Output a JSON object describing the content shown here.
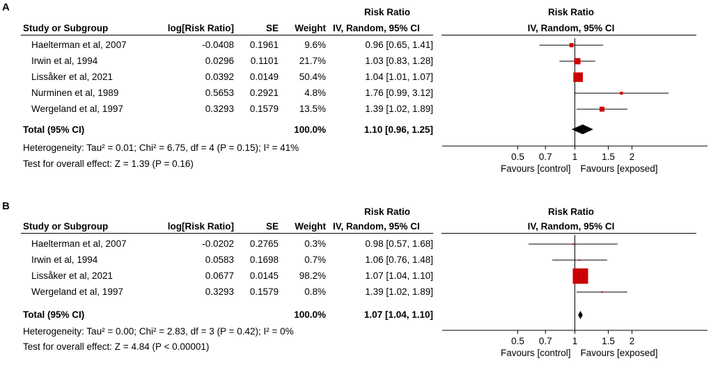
{
  "panels": [
    {
      "letter": "A",
      "rr_group_header": "Risk Ratio",
      "plot_title": "Risk Ratio",
      "headers": {
        "study": "Study or Subgroup",
        "logrr": "log[Risk Ratio]",
        "se": "SE",
        "weight": "Weight",
        "ci": "IV, Random, 95% CI",
        "plot_ci": "IV, Random, 95% CI"
      },
      "rows": [
        {
          "study": "Haelterman et al, 2007",
          "logrr": "-0.0408",
          "se": "0.1961",
          "weight": "9.6%",
          "ci": "0.96 [0.65, 1.41]"
        },
        {
          "study": "Irwin et al, 1994",
          "logrr": "0.0296",
          "se": "0.1101",
          "weight": "21.7%",
          "ci": "1.03 [0.83, 1.28]"
        },
        {
          "study": "Lissåker et al, 2021",
          "logrr": "0.0392",
          "se": "0.0149",
          "weight": "50.4%",
          "ci": "1.04 [1.01, 1.07]"
        },
        {
          "study": "Nurminen et al, 1989",
          "logrr": "0.5653",
          "se": "0.2921",
          "weight": "4.8%",
          "ci": "1.76 [0.99, 3.12]"
        },
        {
          "study": "Wergeland et al, 1997",
          "logrr": "0.3293",
          "se": "0.1579",
          "weight": "13.5%",
          "ci": "1.39 [1.02, 1.89]"
        }
      ],
      "total": {
        "label": "Total (95% CI)",
        "weight": "100.0%",
        "ci": "1.10 [0.96, 1.25]"
      },
      "heterogeneity": "Heterogeneity: Tau² = 0.01; Chi² = 6.75, df = 4 (P = 0.15); I² = 41%",
      "overall_effect": "Test for overall effect: Z = 1.39 (P = 0.16)",
      "axis": {
        "ticks": [
          "0.5",
          "0.7",
          "1",
          "1.5",
          "2"
        ],
        "left_label": "Favours [control]",
        "right_label": "Favours [exposed]"
      }
    },
    {
      "letter": "B",
      "rr_group_header": "Risk Ratio",
      "plot_title": "Risk Ratio",
      "headers": {
        "study": "Study or Subgroup",
        "logrr": "log[Risk Ratio]",
        "se": "SE",
        "weight": "Weight",
        "ci": "IV, Random, 95% CI",
        "plot_ci": "IV, Random, 95% CI"
      },
      "rows": [
        {
          "study": "Haelterman et al, 2007",
          "logrr": "-0.0202",
          "se": "0.2765",
          "weight": "0.3%",
          "ci": "0.98 [0.57, 1.68]"
        },
        {
          "study": "Irwin et al, 1994",
          "logrr": "0.0583",
          "se": "0.1698",
          "weight": "0.7%",
          "ci": "1.06 [0.76, 1.48]"
        },
        {
          "study": "Lissåker et al, 2021",
          "logrr": "0.0677",
          "se": "0.0145",
          "weight": "98.2%",
          "ci": "1.07 [1.04, 1.10]"
        },
        {
          "study": "Wergeland et al, 1997",
          "logrr": "0.3293",
          "se": "0.1579",
          "weight": "0.8%",
          "ci": "1.39 [1.02, 1.89]"
        }
      ],
      "total": {
        "label": "Total (95% CI)",
        "weight": "100.0%",
        "ci": "1.07 [1.04, 1.10]"
      },
      "heterogeneity": "Heterogeneity: Tau² = 0.00; Chi² = 2.83, df = 3 (P = 0.42); I² = 0%",
      "overall_effect": "Test for overall effect: Z = 4.84 (P < 0.00001)",
      "axis": {
        "ticks": [
          "0.5",
          "0.7",
          "1",
          "1.5",
          "2"
        ],
        "left_label": "Favours [control]",
        "right_label": "Favours [exposed]"
      }
    }
  ],
  "chart_data": [
    {
      "type": "forest",
      "title": "Risk Ratio",
      "scale": "log",
      "xlim": [
        0.2,
        5
      ],
      "ticks": [
        0.5,
        0.7,
        1,
        1.5,
        2
      ],
      "null_value": 1,
      "studies": [
        {
          "name": "Haelterman et al, 2007",
          "rr": 0.96,
          "lo": 0.65,
          "hi": 1.41,
          "weight": 9.6
        },
        {
          "name": "Irwin et al, 1994",
          "rr": 1.03,
          "lo": 0.83,
          "hi": 1.28,
          "weight": 21.7
        },
        {
          "name": "Lissåker et al, 2021",
          "rr": 1.04,
          "lo": 1.01,
          "hi": 1.07,
          "weight": 50.4
        },
        {
          "name": "Nurminen et al, 1989",
          "rr": 1.76,
          "lo": 0.99,
          "hi": 3.12,
          "weight": 4.8
        },
        {
          "name": "Wergeland et al, 1997",
          "rr": 1.39,
          "lo": 1.02,
          "hi": 1.89,
          "weight": 13.5
        }
      ],
      "pooled": {
        "rr": 1.1,
        "lo": 0.96,
        "hi": 1.25
      },
      "xlabel_left": "Favours [control]",
      "xlabel_right": "Favours [exposed]",
      "marker_color": "#cc0000"
    },
    {
      "type": "forest",
      "title": "Risk Ratio",
      "scale": "log",
      "xlim": [
        0.2,
        5
      ],
      "ticks": [
        0.5,
        0.7,
        1,
        1.5,
        2
      ],
      "null_value": 1,
      "studies": [
        {
          "name": "Haelterman et al, 2007",
          "rr": 0.98,
          "lo": 0.57,
          "hi": 1.68,
          "weight": 0.3
        },
        {
          "name": "Irwin et al, 1994",
          "rr": 1.06,
          "lo": 0.76,
          "hi": 1.48,
          "weight": 0.7
        },
        {
          "name": "Lissåker et al, 2021",
          "rr": 1.07,
          "lo": 1.04,
          "hi": 1.1,
          "weight": 98.2
        },
        {
          "name": "Wergeland et al, 1997",
          "rr": 1.39,
          "lo": 1.02,
          "hi": 1.89,
          "weight": 0.8
        }
      ],
      "pooled": {
        "rr": 1.07,
        "lo": 1.04,
        "hi": 1.1
      },
      "xlabel_left": "Favours [control]",
      "xlabel_right": "Favours [exposed]",
      "marker_color": "#cc0000"
    }
  ]
}
